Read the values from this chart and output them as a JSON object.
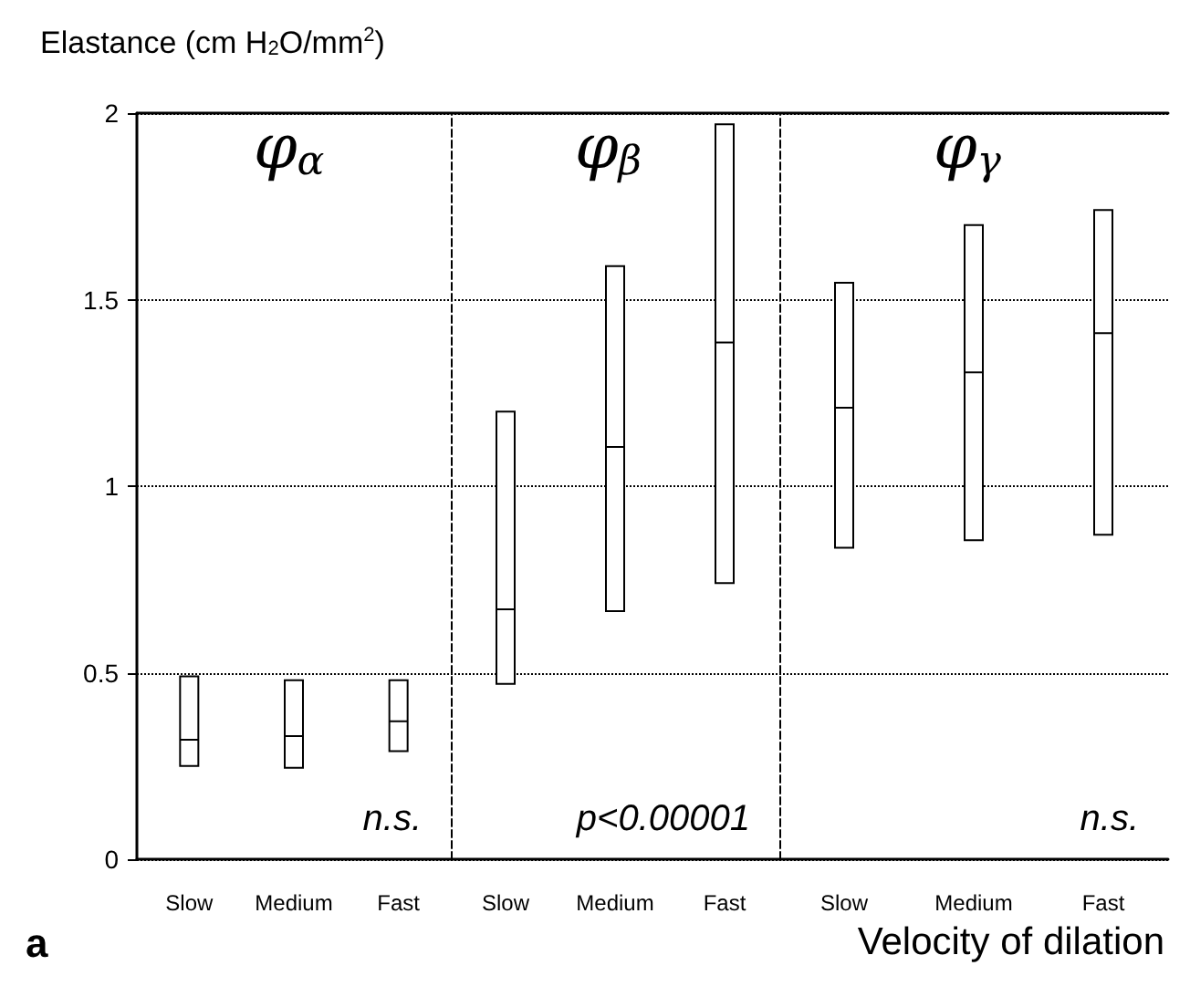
{
  "chart_data": [
    {
      "type": "box",
      "title": "φ$_{α}$",
      "ylabel": "Elastance (cm H$_{2}$O/mm$^{2}$)",
      "categories": [
        "Slow",
        "Medium",
        "Fast"
      ],
      "color": "#000000",
      "ylim": [
        0,
        2
      ],
      "yticks": [
        0,
        0.5,
        1,
        1.5,
        2
      ],
      "grid": "y",
      "annotations": [
        "n.s.",
        "a"
      ],
      "boxes": [
        {
          "low": 0.25,
          "q1": 0.25,
          "median": 0.32,
          "q3": 0.49,
          "high": 0.49
        },
        {
          "low": 0.245,
          "q1": 0.245,
          "median": 0.33,
          "q3": 0.48,
          "high": 0.48
        },
        {
          "low": 0.29,
          "q1": 0.29,
          "median": 0.37,
          "q3": 0.48,
          "high": 0.48
        }
      ]
    },
    {
      "type": "box",
      "title": "φ$_{β}$",
      "categories": [
        "Slow",
        "Medium",
        "Fast"
      ],
      "color": "#000000",
      "ylim": [
        0,
        2
      ],
      "yticks": [
        0,
        0.5,
        1,
        1.5,
        2
      ],
      "grid": "y",
      "tick_labels": "x",
      "annotations": [
        "p<0.00001"
      ],
      "boxes": [
        {
          "low": 0.47,
          "q1": 0.47,
          "median": 0.67,
          "q3": 1.2,
          "high": 1.2
        },
        {
          "low": 0.665,
          "q1": 0.665,
          "median": 1.105,
          "q3": 1.59,
          "high": 1.59
        },
        {
          "low": 0.74,
          "q1": 0.74,
          "median": 1.385,
          "q3": 1.97,
          "high": 1.97
        }
      ]
    },
    {
      "type": "box",
      "title": "φ$_{γ}$",
      "xlabel": "Velocity of dilation",
      "categories": [
        "Slow",
        "Medium",
        "Fast"
      ],
      "color": "#000000",
      "ylim": [
        0,
        2
      ],
      "yticks": [
        0,
        0.5,
        1,
        1.5,
        2
      ],
      "grid": "y",
      "tick_labels": "x",
      "annotations": [
        "n.s."
      ],
      "boxes": [
        {
          "low": 0.835,
          "q1": 0.835,
          "median": 1.21,
          "q3": 1.545,
          "high": 1.545
        },
        {
          "low": 0.855,
          "q1": 0.855,
          "median": 1.305,
          "q3": 1.7,
          "high": 1.7
        },
        {
          "low": 0.87,
          "q1": 0.87,
          "median": 1.41,
          "q3": 1.74,
          "high": 1.74
        }
      ]
    }
  ]
}
